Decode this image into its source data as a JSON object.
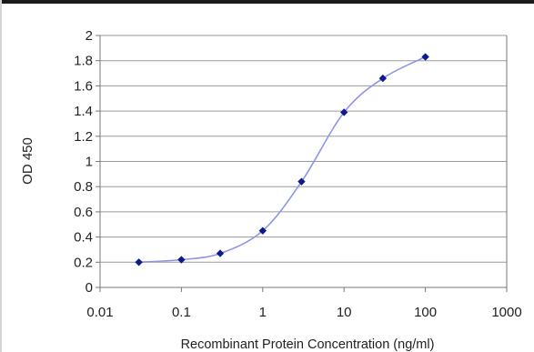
{
  "chart_data": {
    "type": "line",
    "title": "",
    "xlabel": "Recombinant Protein Concentration (ng/ml)",
    "ylabel": "OD 450",
    "x_scale": "log",
    "xlim": [
      0.01,
      1000
    ],
    "ylim": [
      0,
      2
    ],
    "x_ticks": [
      0.01,
      0.1,
      1,
      10,
      100,
      1000
    ],
    "x_tick_labels": [
      "0.01",
      "0.1",
      "1",
      "10",
      "100",
      "1000"
    ],
    "y_ticks": [
      0,
      0.2,
      0.4,
      0.6,
      0.8,
      1,
      1.2,
      1.4,
      1.6,
      1.8,
      2
    ],
    "y_tick_labels": [
      "0",
      "0.2",
      "0.4",
      "0.6",
      "0.8",
      "1",
      "1.2",
      "1.4",
      "1.6",
      "1.8",
      "2"
    ],
    "grid": "horizontal",
    "legend": "none",
    "series": [
      {
        "x": [
          0.03,
          0.1,
          0.3,
          1,
          3,
          10,
          30,
          100
        ],
        "y": [
          0.2,
          0.22,
          0.27,
          0.45,
          0.84,
          1.39,
          1.66,
          1.83
        ],
        "line_color": "#8f95e6",
        "marker_color": "#0d1a8c"
      }
    ],
    "colors": {
      "axis": "#777777",
      "grid": "#9a9a9a"
    }
  }
}
